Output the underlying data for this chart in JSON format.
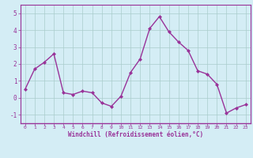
{
  "x": [
    0,
    1,
    2,
    3,
    4,
    5,
    6,
    7,
    8,
    9,
    10,
    11,
    12,
    13,
    14,
    15,
    16,
    17,
    18,
    19,
    20,
    21,
    22,
    23
  ],
  "y": [
    0.5,
    1.7,
    2.1,
    2.6,
    0.3,
    0.2,
    0.4,
    0.3,
    -0.3,
    -0.5,
    0.1,
    1.5,
    2.3,
    4.1,
    4.8,
    3.9,
    3.3,
    2.8,
    1.6,
    1.4,
    0.8,
    -0.9,
    -0.6,
    -0.4
  ],
  "line_color": "#993399",
  "marker": "D",
  "marker_size": 2,
  "bg_color": "#d4edf5",
  "grid_color": "#aacccc",
  "xlabel": "Windchill (Refroidissement éolien,°C)",
  "xlim": [
    -0.5,
    23.5
  ],
  "ylim": [
    -1.5,
    5.5
  ],
  "yticks": [
    -1,
    0,
    1,
    2,
    3,
    4,
    5
  ],
  "xticks": [
    0,
    1,
    2,
    3,
    4,
    5,
    6,
    7,
    8,
    9,
    10,
    11,
    12,
    13,
    14,
    15,
    16,
    17,
    18,
    19,
    20,
    21,
    22,
    23
  ],
  "label_color": "#993399",
  "tick_color": "#993399",
  "border_color": "#993399",
  "line_width": 1.0
}
